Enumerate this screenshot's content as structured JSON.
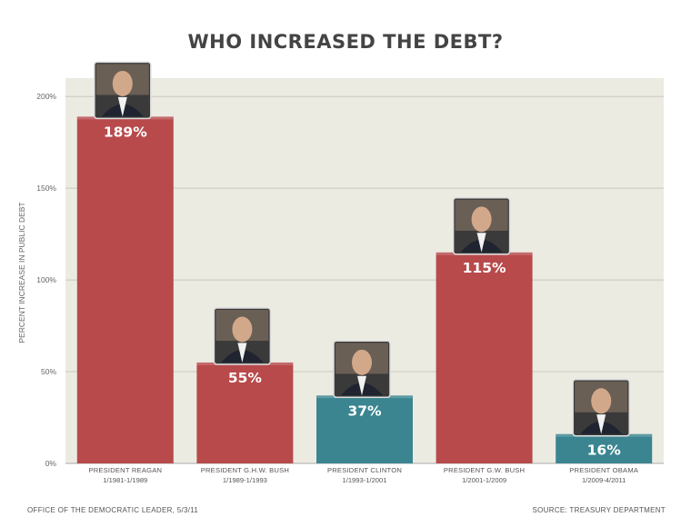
{
  "chart_data": {
    "type": "bar",
    "title": "WHO INCREASED THE DEBT?",
    "ylabel": "PERCENT INCREASE IN PUBLIC DEBT",
    "xlabel": "",
    "ylim": [
      0,
      210
    ],
    "yticks": [
      0,
      50,
      100,
      150,
      200
    ],
    "ytick_labels": [
      "0%",
      "50%",
      "100%",
      "150%",
      "200%"
    ],
    "grid": true,
    "categories": [
      {
        "name": "PRESIDENT REAGAN",
        "term": "1/1981-1/1989"
      },
      {
        "name": "PRESIDENT G.H.W. BUSH",
        "term": "1/1989-1/1993"
      },
      {
        "name": "PRESIDENT CLINTON",
        "term": "1/1993-1/2001"
      },
      {
        "name": "PRESIDENT G.W. BUSH",
        "term": "1/2001-1/2009"
      },
      {
        "name": "PRESIDENT OBAMA",
        "term": "1/2009-4/2011"
      }
    ],
    "values": [
      189,
      55,
      37,
      115,
      16
    ],
    "value_labels": [
      "189%",
      "55%",
      "37%",
      "115%",
      "16%"
    ],
    "bar_colors": [
      "#b84a4c",
      "#b84a4c",
      "#3b8591",
      "#b84a4c",
      "#3b8591"
    ]
  },
  "footer": {
    "left": "OFFICE OF THE DEMOCRATIC LEADER, 5/3/11",
    "right": "SOURCE: TREASURY DEPARTMENT"
  },
  "colors": {
    "plot_background": "#ecebe2",
    "gridline": "#c9c8bf",
    "republican": "#b84a4c",
    "democrat": "#3b8591"
  }
}
